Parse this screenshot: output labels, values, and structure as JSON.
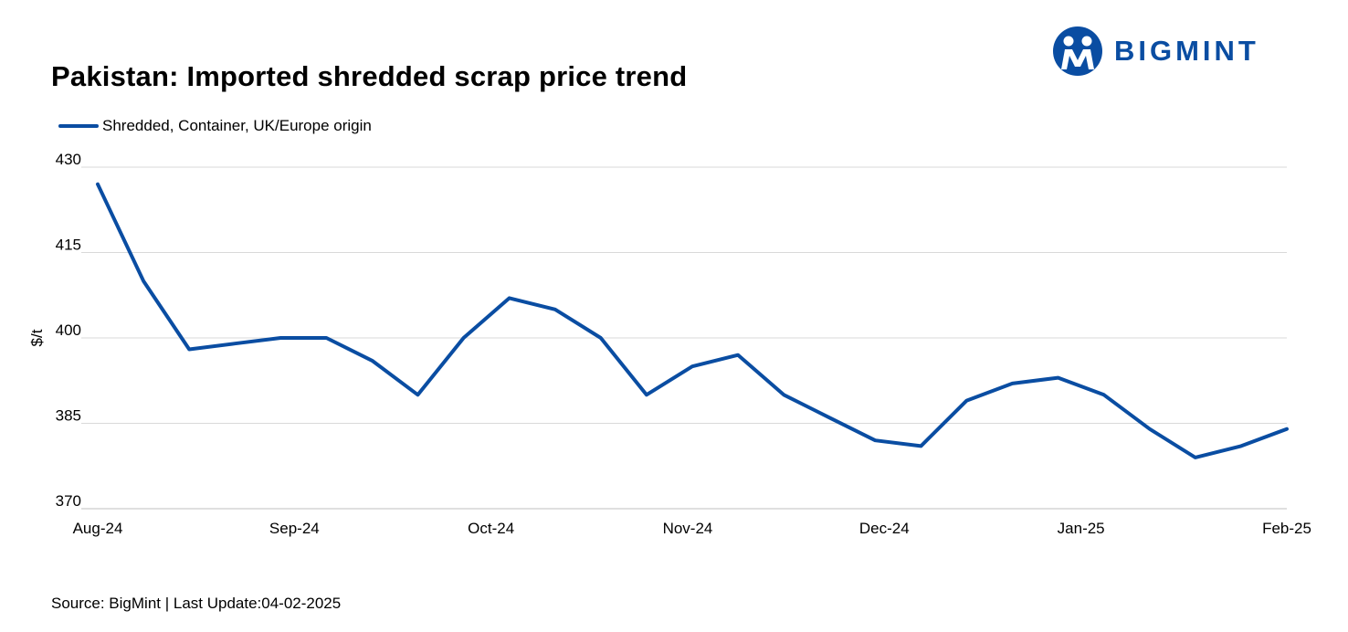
{
  "brand": {
    "name": "BIGMINT",
    "color": "#0A4DA2"
  },
  "chart_data": {
    "type": "line",
    "title": "Pakistan: Imported shredded scrap price trend",
    "xlabel": "",
    "ylabel": "$/t",
    "ylim": [
      370,
      430
    ],
    "yticks": [
      370,
      385,
      400,
      415,
      430
    ],
    "grid": "horizontal",
    "legend_position": "top-left",
    "x_tick_labels": [
      "Aug-24",
      "Sep-24",
      "Oct-24",
      "Nov-24",
      "Dec-24",
      "Jan-25",
      "Feb-25"
    ],
    "x_tick_positions": [
      0,
      4.3,
      8.6,
      12.9,
      17.2,
      21.5,
      26
    ],
    "series": [
      {
        "name": "Shredded, Container, UK/Europe origin",
        "color": "#0A4DA2",
        "values": [
          427,
          410,
          398,
          399,
          400,
          400,
          396,
          390,
          400,
          407,
          405,
          400,
          390,
          395,
          397,
          390,
          386,
          382,
          381,
          389,
          392,
          393,
          390,
          384,
          379,
          381,
          384
        ]
      }
    ]
  },
  "footer": {
    "source": "Source: BigMint | Last Update:04-02-2025"
  }
}
